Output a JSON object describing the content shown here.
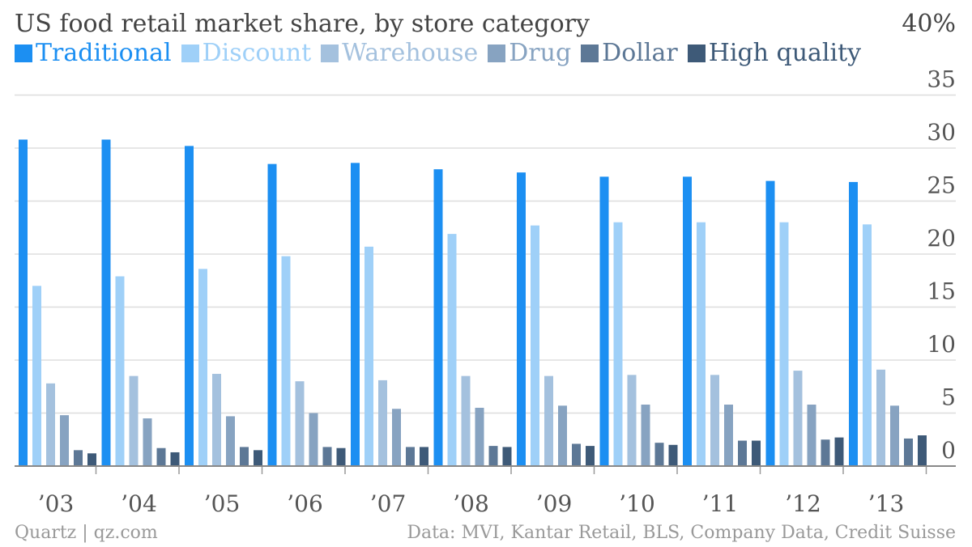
{
  "chart_data": {
    "type": "bar",
    "title": "US food retail market share, by store category",
    "ylabel": "",
    "y_top_label": "40%",
    "ylim": [
      0,
      40
    ],
    "yticks": [
      "0",
      "5",
      "10",
      "15",
      "20",
      "25",
      "30",
      "35"
    ],
    "categories": [
      "’03",
      "’04",
      "’05",
      "’06",
      "’07",
      "’08",
      "’09",
      "’10",
      "’11",
      "’12",
      "’13"
    ],
    "series": [
      {
        "name": "Traditional",
        "color": "#1c8ff2",
        "values": [
          30.8,
          30.8,
          30.2,
          28.5,
          28.6,
          28.0,
          27.7,
          27.3,
          27.3,
          26.9,
          26.8
        ]
      },
      {
        "name": "Discount",
        "color": "#9fd0f8",
        "values": [
          17.0,
          17.9,
          18.6,
          19.8,
          20.7,
          21.9,
          22.7,
          23.0,
          23.0,
          23.0,
          22.8
        ]
      },
      {
        "name": "Warehouse",
        "color": "#a4c1de",
        "values": [
          7.8,
          8.5,
          8.7,
          8.0,
          8.1,
          8.5,
          8.5,
          8.6,
          8.6,
          9.0,
          9.1
        ]
      },
      {
        "name": "Drug",
        "color": "#87a3c1",
        "values": [
          4.8,
          4.5,
          4.7,
          5.0,
          5.4,
          5.5,
          5.7,
          5.8,
          5.8,
          5.8,
          5.7
        ]
      },
      {
        "name": "Dollar",
        "color": "#5d7896",
        "values": [
          1.5,
          1.7,
          1.8,
          1.8,
          1.8,
          1.9,
          2.1,
          2.2,
          2.4,
          2.5,
          2.6
        ]
      },
      {
        "name": "High quality",
        "color": "#3e5a78",
        "values": [
          1.2,
          1.3,
          1.5,
          1.7,
          1.8,
          1.8,
          1.9,
          2.0,
          2.4,
          2.7,
          2.9
        ]
      }
    ],
    "grid": true,
    "legend_position": "top-left"
  },
  "footer": {
    "left": "Quartz | qz.com",
    "right": "Data: MVI, Kantar Retail, BLS, Company Data, Credit Suisse"
  }
}
